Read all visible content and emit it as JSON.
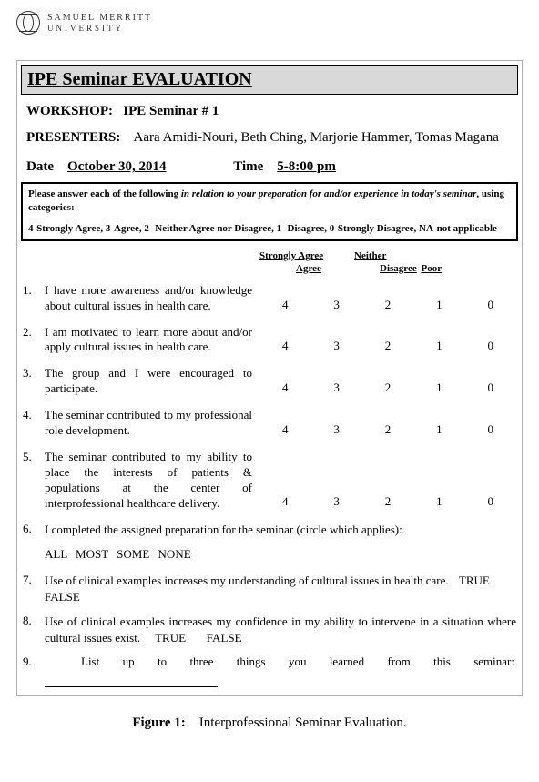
{
  "logo": {
    "line1": "SAMUEL MERRITT",
    "line2": "UNIVERSITY"
  },
  "title": "IPE Seminar EVALUATION",
  "workshop": {
    "label": "WORKSHOP:",
    "value": "IPE Seminar # 1"
  },
  "presenters": {
    "label": "PRESENTERS:",
    "value": "Aara Amidi-Nouri, Beth Ching, Marjorie Hammer, Tomas Magana"
  },
  "date": {
    "label": "Date",
    "value": "October 30, 2014"
  },
  "time": {
    "label": "Time",
    "value": "5-8:00 pm"
  },
  "instructions": {
    "lead_bold": "Please answer each of the following ",
    "lead_italic": "in relation to your preparation for and/or experience in today's seminar",
    "lead_tail": ", using categories:",
    "scale": "4-Strongly Agree, 3-Agree, 2- Neither Agree nor Disagree, 1- Disagree, 0-Strongly Disagree, NA-not applicable"
  },
  "headers": {
    "strongly_agree": "Strongly Agree",
    "neither": "Neither",
    "agree": "Agree",
    "disagree": "Disagree",
    "poor": "Poor"
  },
  "scale_values": [
    "4",
    "3",
    "2",
    "1",
    "0"
  ],
  "likert_questions": [
    {
      "n": "1.",
      "text": "I have more awareness and/or knowledge about cultural issues in health care."
    },
    {
      "n": "2.",
      "text": "I am motivated to learn more about and/or apply cultural issues in health care."
    },
    {
      "n": "3.",
      "text": "The group and I were encouraged to participate."
    },
    {
      "n": "4.",
      "text": "The seminar contributed to my professional role development."
    },
    {
      "n": "5.",
      "text": "The seminar contributed to my ability to place the interests of patients & populations at the center of interprofessional healthcare delivery."
    }
  ],
  "q6": {
    "n": "6.",
    "text": "I completed the assigned preparation for the seminar (circle which applies):",
    "options": "ALL   MOST   SOME   NONE"
  },
  "q7": {
    "n": "7.",
    "text": "Use of clinical examples increases my understanding of cultural issues in health care.",
    "tf": "TRUE  FALSE"
  },
  "q8": {
    "n": "8.",
    "text": "Use of clinical examples increases my confidence in my ability to intervene in a situation where cultural issues exist.",
    "tf_true": "TRUE",
    "tf_false": "FALSE"
  },
  "q9": {
    "n": "9.",
    "text": "List up to three things you learned from this seminar:"
  },
  "figure": {
    "label": "Figure 1:",
    "caption": "Interprofessional Seminar Evaluation."
  }
}
